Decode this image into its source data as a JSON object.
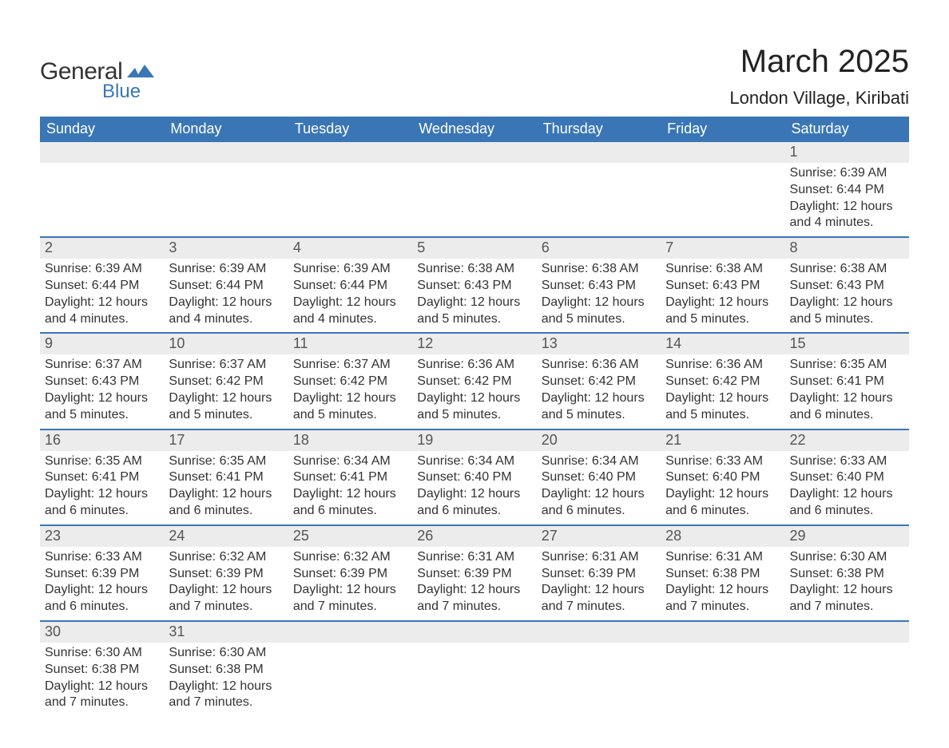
{
  "logo": {
    "textA": "General",
    "textB": "Blue",
    "wave_color": "#3a76b6"
  },
  "title": {
    "month": "March 2025",
    "location": "London Village, Kiribati"
  },
  "colors": {
    "header_bg": "#3a76b6",
    "header_fg": "#ffffff",
    "daynum_bg": "#ececec",
    "row_border": "#3a76b6",
    "text": "#333333"
  },
  "weekdays": [
    "Sunday",
    "Monday",
    "Tuesday",
    "Wednesday",
    "Thursday",
    "Friday",
    "Saturday"
  ],
  "labels": {
    "sunrise": "Sunrise:",
    "sunset": "Sunset:",
    "daylight": "Daylight:"
  },
  "weeks": [
    [
      null,
      null,
      null,
      null,
      null,
      null,
      {
        "d": "1",
        "sr": "6:39 AM",
        "ss": "6:44 PM",
        "dl": "12 hours and 4 minutes."
      }
    ],
    [
      {
        "d": "2",
        "sr": "6:39 AM",
        "ss": "6:44 PM",
        "dl": "12 hours and 4 minutes."
      },
      {
        "d": "3",
        "sr": "6:39 AM",
        "ss": "6:44 PM",
        "dl": "12 hours and 4 minutes."
      },
      {
        "d": "4",
        "sr": "6:39 AM",
        "ss": "6:44 PM",
        "dl": "12 hours and 4 minutes."
      },
      {
        "d": "5",
        "sr": "6:38 AM",
        "ss": "6:43 PM",
        "dl": "12 hours and 5 minutes."
      },
      {
        "d": "6",
        "sr": "6:38 AM",
        "ss": "6:43 PM",
        "dl": "12 hours and 5 minutes."
      },
      {
        "d": "7",
        "sr": "6:38 AM",
        "ss": "6:43 PM",
        "dl": "12 hours and 5 minutes."
      },
      {
        "d": "8",
        "sr": "6:38 AM",
        "ss": "6:43 PM",
        "dl": "12 hours and 5 minutes."
      }
    ],
    [
      {
        "d": "9",
        "sr": "6:37 AM",
        "ss": "6:43 PM",
        "dl": "12 hours and 5 minutes."
      },
      {
        "d": "10",
        "sr": "6:37 AM",
        "ss": "6:42 PM",
        "dl": "12 hours and 5 minutes."
      },
      {
        "d": "11",
        "sr": "6:37 AM",
        "ss": "6:42 PM",
        "dl": "12 hours and 5 minutes."
      },
      {
        "d": "12",
        "sr": "6:36 AM",
        "ss": "6:42 PM",
        "dl": "12 hours and 5 minutes."
      },
      {
        "d": "13",
        "sr": "6:36 AM",
        "ss": "6:42 PM",
        "dl": "12 hours and 5 minutes."
      },
      {
        "d": "14",
        "sr": "6:36 AM",
        "ss": "6:42 PM",
        "dl": "12 hours and 5 minutes."
      },
      {
        "d": "15",
        "sr": "6:35 AM",
        "ss": "6:41 PM",
        "dl": "12 hours and 6 minutes."
      }
    ],
    [
      {
        "d": "16",
        "sr": "6:35 AM",
        "ss": "6:41 PM",
        "dl": "12 hours and 6 minutes."
      },
      {
        "d": "17",
        "sr": "6:35 AM",
        "ss": "6:41 PM",
        "dl": "12 hours and 6 minutes."
      },
      {
        "d": "18",
        "sr": "6:34 AM",
        "ss": "6:41 PM",
        "dl": "12 hours and 6 minutes."
      },
      {
        "d": "19",
        "sr": "6:34 AM",
        "ss": "6:40 PM",
        "dl": "12 hours and 6 minutes."
      },
      {
        "d": "20",
        "sr": "6:34 AM",
        "ss": "6:40 PM",
        "dl": "12 hours and 6 minutes."
      },
      {
        "d": "21",
        "sr": "6:33 AM",
        "ss": "6:40 PM",
        "dl": "12 hours and 6 minutes."
      },
      {
        "d": "22",
        "sr": "6:33 AM",
        "ss": "6:40 PM",
        "dl": "12 hours and 6 minutes."
      }
    ],
    [
      {
        "d": "23",
        "sr": "6:33 AM",
        "ss": "6:39 PM",
        "dl": "12 hours and 6 minutes."
      },
      {
        "d": "24",
        "sr": "6:32 AM",
        "ss": "6:39 PM",
        "dl": "12 hours and 7 minutes."
      },
      {
        "d": "25",
        "sr": "6:32 AM",
        "ss": "6:39 PM",
        "dl": "12 hours and 7 minutes."
      },
      {
        "d": "26",
        "sr": "6:31 AM",
        "ss": "6:39 PM",
        "dl": "12 hours and 7 minutes."
      },
      {
        "d": "27",
        "sr": "6:31 AM",
        "ss": "6:39 PM",
        "dl": "12 hours and 7 minutes."
      },
      {
        "d": "28",
        "sr": "6:31 AM",
        "ss": "6:38 PM",
        "dl": "12 hours and 7 minutes."
      },
      {
        "d": "29",
        "sr": "6:30 AM",
        "ss": "6:38 PM",
        "dl": "12 hours and 7 minutes."
      }
    ],
    [
      {
        "d": "30",
        "sr": "6:30 AM",
        "ss": "6:38 PM",
        "dl": "12 hours and 7 minutes."
      },
      {
        "d": "31",
        "sr": "6:30 AM",
        "ss": "6:38 PM",
        "dl": "12 hours and 7 minutes."
      },
      null,
      null,
      null,
      null,
      null
    ]
  ]
}
